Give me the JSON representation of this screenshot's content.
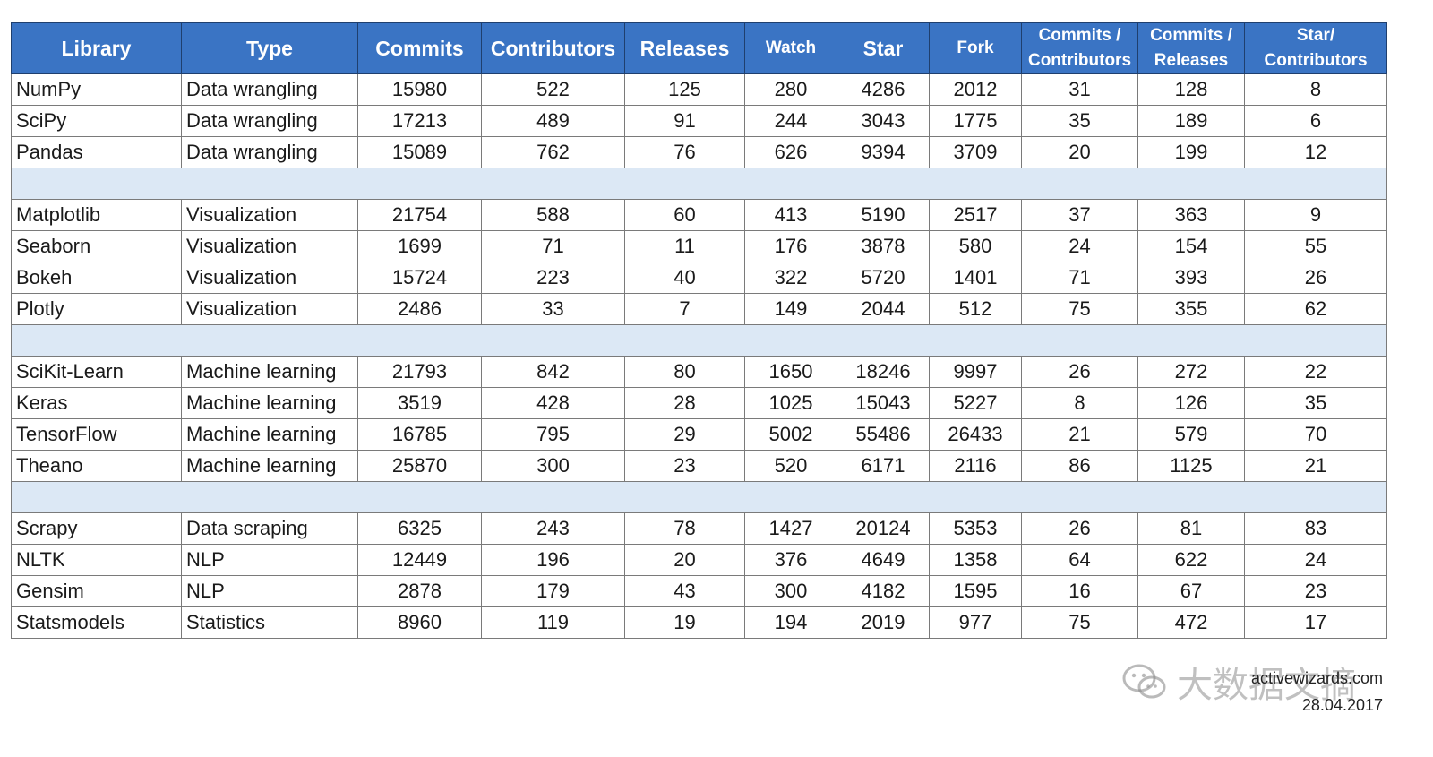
{
  "table": {
    "headers": [
      "Library",
      "Type",
      "Commits",
      "Contributors",
      "Releases",
      "Watch",
      "Star",
      "Fork",
      "Commits / Contributors",
      "Commits / Releases",
      "Star/ Contributors"
    ],
    "header_small": [
      false,
      false,
      false,
      false,
      false,
      true,
      false,
      true,
      true,
      true,
      true
    ],
    "groups": [
      [
        [
          "NumPy",
          "Data wrangling",
          "15980",
          "522",
          "125",
          "280",
          "4286",
          "2012",
          "31",
          "128",
          "8"
        ],
        [
          "SciPy",
          "Data wrangling",
          "17213",
          "489",
          "91",
          "244",
          "3043",
          "1775",
          "35",
          "189",
          "6"
        ],
        [
          "Pandas",
          "Data wrangling",
          "15089",
          "762",
          "76",
          "626",
          "9394",
          "3709",
          "20",
          "199",
          "12"
        ]
      ],
      [
        [
          "Matplotlib",
          "Visualization",
          "21754",
          "588",
          "60",
          "413",
          "5190",
          "2517",
          "37",
          "363",
          "9"
        ],
        [
          "Seaborn",
          "Visualization",
          "1699",
          "71",
          "11",
          "176",
          "3878",
          "580",
          "24",
          "154",
          "55"
        ],
        [
          "Bokeh",
          "Visualization",
          "15724",
          "223",
          "40",
          "322",
          "5720",
          "1401",
          "71",
          "393",
          "26"
        ],
        [
          "Plotly",
          "Visualization",
          "2486",
          "33",
          "7",
          "149",
          "2044",
          "512",
          "75",
          "355",
          "62"
        ]
      ],
      [
        [
          "SciKit-Learn",
          "Machine learning",
          "21793",
          "842",
          "80",
          "1650",
          "18246",
          "9997",
          "26",
          "272",
          "22"
        ],
        [
          "Keras",
          "Machine learning",
          "3519",
          "428",
          "28",
          "1025",
          "15043",
          "5227",
          "8",
          "126",
          "35"
        ],
        [
          "TensorFlow",
          "Machine learning",
          "16785",
          "795",
          "29",
          "5002",
          "55486",
          "26433",
          "21",
          "579",
          "70"
        ],
        [
          "Theano",
          "Machine learning",
          "25870",
          "300",
          "23",
          "520",
          "6171",
          "2116",
          "86",
          "1125",
          "21"
        ]
      ],
      [
        [
          "Scrapy",
          "Data scraping",
          "6325",
          "243",
          "78",
          "1427",
          "20124",
          "5353",
          "26",
          "81",
          "83"
        ],
        [
          "NLTK",
          "NLP",
          "12449",
          "196",
          "20",
          "376",
          "4649",
          "1358",
          "64",
          "622",
          "24"
        ],
        [
          "Gensim",
          "NLP",
          "2878",
          "179",
          "43",
          "300",
          "4182",
          "1595",
          "16",
          "67",
          "23"
        ],
        [
          "Statsmodels",
          "Statistics",
          "8960",
          "119",
          "19",
          "194",
          "2019",
          "977",
          "75",
          "472",
          "17"
        ]
      ]
    ]
  },
  "footer": {
    "site": "activewizards.com",
    "date": "28.04.2017"
  },
  "watermark": {
    "text": "大数据文摘",
    "icon": "wechat-icon"
  },
  "colors": {
    "header_bg": "#3a74c4",
    "spacer_bg": "#dce8f5"
  }
}
